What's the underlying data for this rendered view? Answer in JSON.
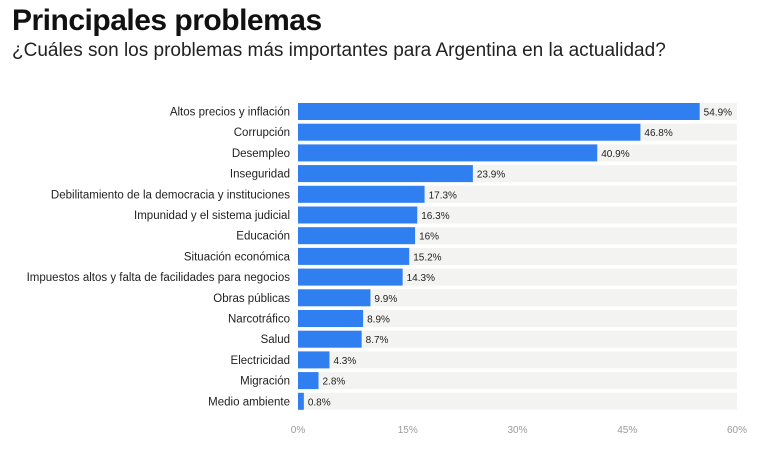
{
  "header": {
    "title": "Principales problemas",
    "subtitle": "¿Cuáles son los problemas más importantes para Argentina en la actualidad?"
  },
  "chart_data": {
    "type": "bar",
    "orientation": "horizontal",
    "title": "Principales problemas",
    "subtitle": "¿Cuáles son los problemas más importantes para Argentina en la actualidad?",
    "categories": [
      "Altos precios y inflación",
      "Corrupción",
      "Desempleo",
      "Inseguridad",
      "Debilitamiento de la democracia y instituciones",
      "Impunidad y el sistema judicial",
      "Educación",
      "Situación económica",
      "Impuestos altos y falta de facilidades para negocios",
      "Obras públicas",
      "Narcotráfico",
      "Salud",
      "Electricidad",
      "Migración",
      "Medio ambiente"
    ],
    "values": [
      54.9,
      46.8,
      40.9,
      23.9,
      17.3,
      16.3,
      16,
      15.2,
      14.3,
      9.9,
      8.9,
      8.7,
      4.3,
      2.8,
      0.8
    ],
    "value_labels": [
      "54.9%",
      "46.8%",
      "40.9%",
      "23.9%",
      "17.3%",
      "16.3%",
      "16%",
      "15.2%",
      "14.3%",
      "9.9%",
      "8.9%",
      "8.7%",
      "4.3%",
      "2.8%",
      "0.8%"
    ],
    "xlim": [
      0,
      60
    ],
    "xticks": [
      0,
      15,
      30,
      45,
      60
    ],
    "xtick_labels": [
      "0%",
      "15%",
      "30%",
      "45%",
      "60%"
    ],
    "grid": false,
    "legend": "none",
    "bar_color": "#2f7ff0",
    "track_color": "#f3f3f1"
  }
}
